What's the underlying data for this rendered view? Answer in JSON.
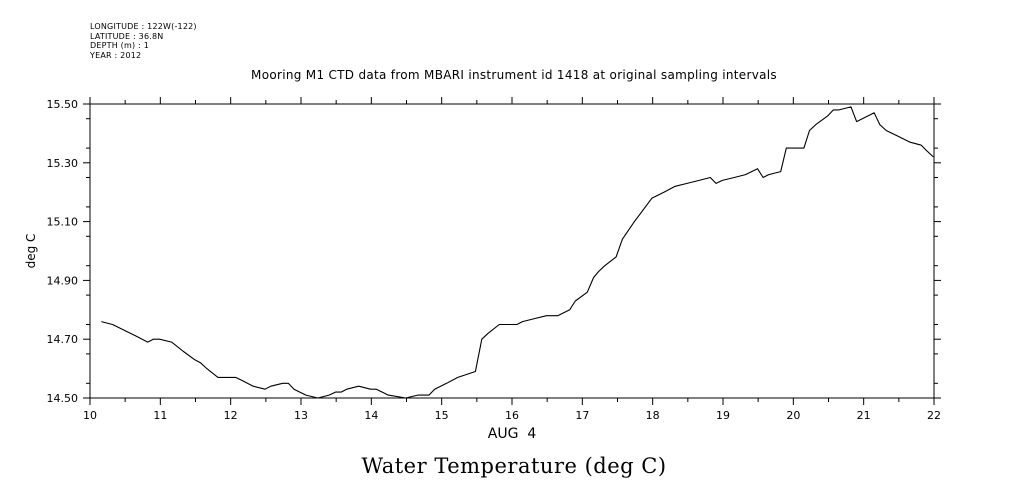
{
  "metadata": {
    "lines": [
      "LONGITUDE : 122W(-122)",
      "LATITUDE : 36.8N",
      "DEPTH (m) : 1",
      "YEAR : 2012"
    ]
  },
  "chart_data": {
    "type": "line",
    "title": "Mooring M1 CTD data from MBARI instrument id 1418 at original sampling intervals",
    "bottom_title": "Water Temperature (deg C)",
    "xlabel": "AUG  4",
    "ylabel": "deg C",
    "xlim": [
      10,
      22
    ],
    "ylim": [
      14.5,
      15.5
    ],
    "x_ticks": [
      "10",
      "11",
      "12",
      "13",
      "14",
      "15",
      "16",
      "17",
      "18",
      "19",
      "20",
      "21",
      "22"
    ],
    "y_ticks": [
      "14.50",
      "14.70",
      "14.90",
      "15.10",
      "15.30",
      "15.50"
    ],
    "grid": false,
    "series": [
      {
        "x": [
          10.16,
          10.32,
          10.49,
          10.66,
          10.82,
          10.9,
          10.99,
          11.16,
          11.32,
          11.49,
          11.57,
          11.66,
          11.82,
          11.9,
          12.07,
          12.16,
          12.32,
          12.49,
          12.57,
          12.74,
          12.82,
          12.9,
          13.07,
          13.24,
          13.4,
          13.49,
          13.57,
          13.65,
          13.82,
          13.99,
          14.07,
          14.24,
          14.49,
          14.66,
          14.82,
          14.9,
          15.07,
          15.23,
          15.48,
          15.57,
          15.66,
          15.82,
          16.07,
          16.15,
          16.32,
          16.49,
          16.65,
          16.82,
          16.9,
          17.07,
          17.16,
          17.23,
          17.32,
          17.48,
          17.57,
          17.74,
          17.99,
          18.16,
          18.32,
          18.49,
          18.66,
          18.82,
          18.9,
          18.99,
          19.16,
          19.32,
          19.49,
          19.57,
          19.65,
          19.82,
          19.9,
          20.15,
          20.23,
          20.32,
          20.49,
          20.57,
          20.65,
          20.82,
          20.9,
          21.15,
          21.23,
          21.32,
          21.49,
          21.66,
          21.82,
          21.9,
          21.99
        ],
        "y": [
          14.76,
          14.75,
          14.73,
          14.71,
          14.69,
          14.7,
          14.7,
          14.69,
          14.66,
          14.63,
          14.62,
          14.6,
          14.57,
          14.57,
          14.57,
          14.56,
          14.54,
          14.53,
          14.54,
          14.55,
          14.55,
          14.53,
          14.51,
          14.5,
          14.51,
          14.52,
          14.52,
          14.53,
          14.54,
          14.53,
          14.53,
          14.51,
          14.5,
          14.51,
          14.51,
          14.53,
          14.55,
          14.57,
          14.59,
          14.7,
          14.72,
          14.75,
          14.75,
          14.76,
          14.77,
          14.78,
          14.78,
          14.8,
          14.83,
          14.86,
          14.91,
          14.93,
          14.95,
          14.98,
          15.04,
          15.1,
          15.18,
          15.2,
          15.22,
          15.23,
          15.24,
          15.25,
          15.23,
          15.24,
          15.25,
          15.26,
          15.28,
          15.25,
          15.26,
          15.27,
          15.35,
          15.35,
          15.41,
          15.43,
          15.46,
          15.48,
          15.48,
          15.49,
          15.44,
          15.47,
          15.43,
          15.41,
          15.39,
          15.37,
          15.36,
          15.34,
          15.32
        ]
      }
    ]
  }
}
